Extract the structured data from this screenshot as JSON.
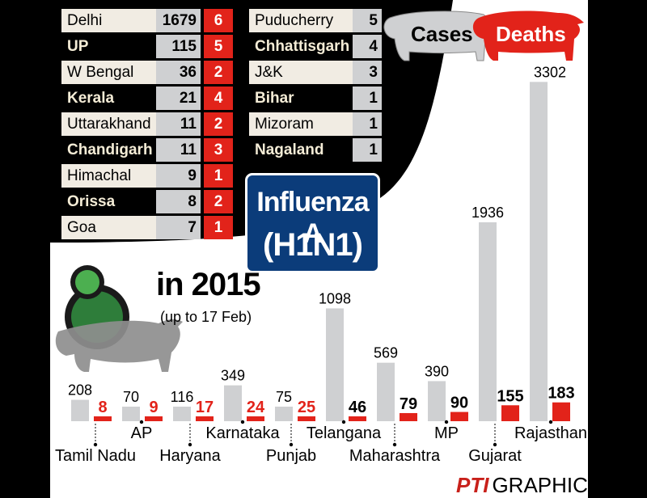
{
  "title": "Influenza A (H1N1)",
  "title_line1": "Influenza A",
  "title_line2": "(H1N1)",
  "year_label": "in 2015",
  "period_label": "(up to 17 Feb)",
  "legend": {
    "cases": "Cases",
    "deaths": "Deaths"
  },
  "credit": {
    "logo": "PTI",
    "text": "GRAPHICS"
  },
  "colors": {
    "cases": "#cfd0d2",
    "deaths": "#e2231a",
    "title_bg": "#0b3c7a",
    "dark_bg": "#000000"
  },
  "table": {
    "left": [
      {
        "state": "Delhi",
        "cases": "1679",
        "deaths": "6"
      },
      {
        "state": "UP",
        "cases": "115",
        "deaths": "5"
      },
      {
        "state": "W Bengal",
        "cases": "36",
        "deaths": "2"
      },
      {
        "state": "Kerala",
        "cases": "21",
        "deaths": "4"
      },
      {
        "state": "Uttarakhand",
        "cases": "11",
        "deaths": "2"
      },
      {
        "state": "Chandigarh",
        "cases": "11",
        "deaths": "3"
      },
      {
        "state": "Himachal",
        "cases": "9",
        "deaths": "1"
      },
      {
        "state": "Orissa",
        "cases": "8",
        "deaths": "2"
      },
      {
        "state": "Goa",
        "cases": "7",
        "deaths": "1"
      }
    ],
    "right": [
      {
        "state": "Puducherry",
        "cases": "5"
      },
      {
        "state": "Chhattisgarh",
        "cases": "4"
      },
      {
        "state": "J&K",
        "cases": "3"
      },
      {
        "state": "Bihar",
        "cases": "1"
      },
      {
        "state": "Mizoram",
        "cases": "1"
      },
      {
        "state": "Nagaland",
        "cases": "1"
      }
    ]
  },
  "chart_data": {
    "type": "bar",
    "categories": [
      "Tamil Nadu",
      "AP",
      "Haryana",
      "Karnataka",
      "Punjab",
      "Telangana",
      "Maharashtra",
      "MP",
      "Gujarat",
      "Rajasthan"
    ],
    "series": [
      {
        "name": "Cases",
        "values": [
          208,
          70,
          116,
          349,
          75,
          1098,
          569,
          390,
          1936,
          3302
        ]
      },
      {
        "name": "Deaths",
        "values": [
          8,
          9,
          17,
          24,
          25,
          46,
          79,
          90,
          155,
          183
        ]
      }
    ],
    "grid": false,
    "legend": "top-right"
  }
}
